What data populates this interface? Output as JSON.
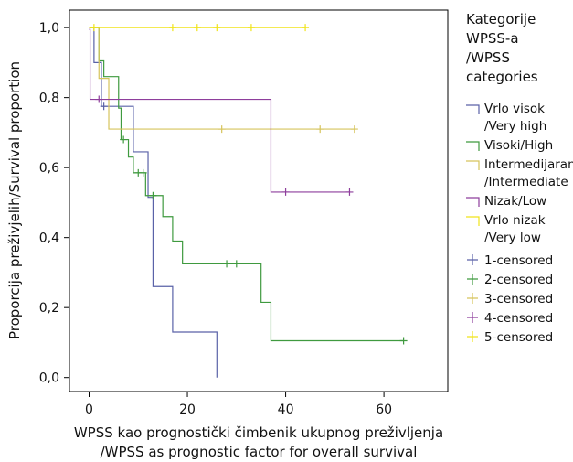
{
  "chart_data": {
    "type": "line",
    "subtype": "kaplan-meier step",
    "title": "",
    "xlabel_line1": "WPSS kao prognostički čimbenik ukupnog preživljenja",
    "xlabel_line2": "/WPSS as prognostic factor for overall survival",
    "ylabel": "Proporcija preživjelih/Survival proportion",
    "xlim": [
      -4,
      73
    ],
    "ylim": [
      -0.04,
      1.05
    ],
    "xticks": [
      0,
      20,
      40,
      60
    ],
    "xtick_labels": [
      "0",
      "20",
      "40",
      "60"
    ],
    "yticks": [
      0,
      0.2,
      0.4,
      0.6,
      0.8,
      1.0
    ],
    "ytick_labels": [
      "0,0",
      "0,2",
      "0,4",
      "0,6",
      "0,8",
      "1,0"
    ],
    "grid": false,
    "legend": {
      "placement": "right",
      "title_lines": [
        "Kategorije",
        "WPSS-a",
        "/WPSS",
        "categories"
      ]
    },
    "series": [
      {
        "label_lines": [
          "Vrlo visok",
          "/Very high"
        ],
        "color": "#5a62a8",
        "steps": [
          [
            0,
            1.0
          ],
          [
            1,
            0.9
          ],
          [
            2.5,
            0.775
          ],
          [
            9,
            0.645
          ],
          [
            12,
            0.515
          ],
          [
            13,
            0.26
          ],
          [
            17,
            0.13
          ],
          [
            26,
            0.0
          ]
        ],
        "end_x": 26,
        "censored": [
          [
            3,
            0.775
          ]
        ]
      },
      {
        "label_lines": [
          "Visoki/High"
        ],
        "color": "#3f9a3f",
        "steps": [
          [
            0,
            1.0
          ],
          [
            2,
            0.905
          ],
          [
            3,
            0.86
          ],
          [
            6,
            0.77
          ],
          [
            6.5,
            0.68
          ],
          [
            8,
            0.63
          ],
          [
            9,
            0.585
          ],
          [
            11.5,
            0.52
          ],
          [
            15,
            0.46
          ],
          [
            17,
            0.39
          ],
          [
            19,
            0.325
          ],
          [
            35,
            0.215
          ],
          [
            37,
            0.105
          ]
        ],
        "end_x": 64,
        "censored": [
          [
            7,
            0.68
          ],
          [
            10,
            0.585
          ],
          [
            11,
            0.585
          ],
          [
            13,
            0.52
          ],
          [
            28,
            0.325
          ],
          [
            30,
            0.325
          ],
          [
            64,
            0.105
          ]
        ]
      },
      {
        "label_lines": [
          "Intermedijaran",
          "/Intermediate"
        ],
        "color": "#d6c45c",
        "steps": [
          [
            0,
            1.0
          ],
          [
            2,
            0.855
          ],
          [
            4,
            0.71
          ]
        ],
        "end_x": 54,
        "censored": [
          [
            27,
            0.71
          ],
          [
            47,
            0.71
          ],
          [
            54,
            0.71
          ]
        ]
      },
      {
        "label_lines": [
          "Nizak/Low"
        ],
        "color": "#8e3e9c",
        "steps": [
          [
            0,
            0.995
          ],
          [
            0.2,
            0.795
          ],
          [
            37,
            0.53
          ]
        ],
        "end_x": 53,
        "censored": [
          [
            2,
            0.795
          ],
          [
            40,
            0.53
          ],
          [
            53,
            0.53
          ]
        ]
      },
      {
        "label_lines": [
          "Vrlo nizak",
          "/Very low"
        ],
        "color": "#f0e41a",
        "steps": [
          [
            0,
            1.0
          ]
        ],
        "end_x": 44,
        "censored": [
          [
            1,
            1.0
          ],
          [
            17,
            1.0
          ],
          [
            22,
            1.0
          ],
          [
            26,
            1.0
          ],
          [
            33,
            1.0
          ],
          [
            44,
            1.0
          ]
        ]
      }
    ],
    "censored_legend": [
      {
        "label": "1-censored",
        "color": "#5a62a8"
      },
      {
        "label": "2-censored",
        "color": "#3f9a3f"
      },
      {
        "label": "3-censored",
        "color": "#d6c45c"
      },
      {
        "label": "4-censored",
        "color": "#8e3e9c"
      },
      {
        "label": "5-censored",
        "color": "#f0e41a"
      }
    ]
  }
}
